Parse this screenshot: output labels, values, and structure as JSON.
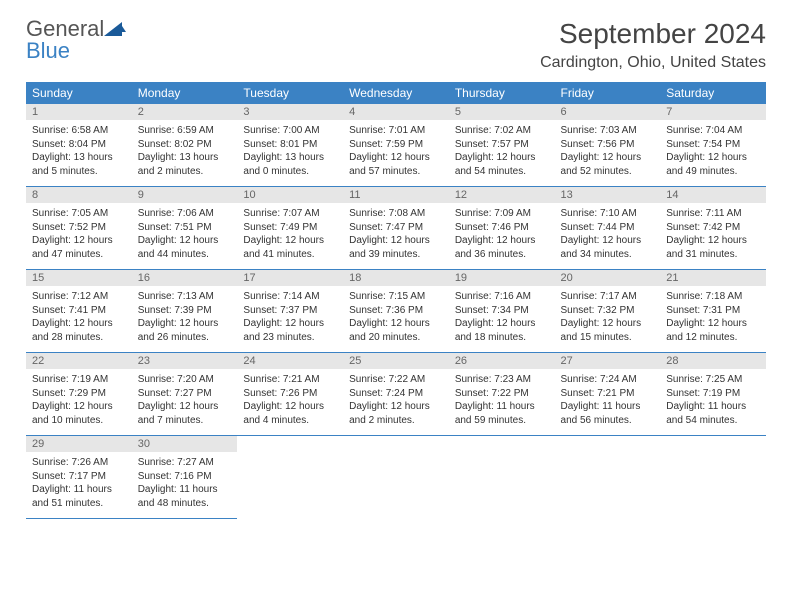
{
  "brand": {
    "general": "General",
    "blue": "Blue",
    "logo_color": "#1a5a99"
  },
  "header": {
    "month_title": "September 2024",
    "location": "Cardington, Ohio, United States"
  },
  "styling": {
    "header_bg": "#3b82c4",
    "header_text": "#ffffff",
    "daynum_bg": "#e6e6e6",
    "row_border": "#3b82c4",
    "body_text": "#333333"
  },
  "weekdays": [
    "Sunday",
    "Monday",
    "Tuesday",
    "Wednesday",
    "Thursday",
    "Friday",
    "Saturday"
  ],
  "days": [
    {
      "n": "1",
      "sunrise": "Sunrise: 6:58 AM",
      "sunset": "Sunset: 8:04 PM",
      "daylight": "Daylight: 13 hours and 5 minutes."
    },
    {
      "n": "2",
      "sunrise": "Sunrise: 6:59 AM",
      "sunset": "Sunset: 8:02 PM",
      "daylight": "Daylight: 13 hours and 2 minutes."
    },
    {
      "n": "3",
      "sunrise": "Sunrise: 7:00 AM",
      "sunset": "Sunset: 8:01 PM",
      "daylight": "Daylight: 13 hours and 0 minutes."
    },
    {
      "n": "4",
      "sunrise": "Sunrise: 7:01 AM",
      "sunset": "Sunset: 7:59 PM",
      "daylight": "Daylight: 12 hours and 57 minutes."
    },
    {
      "n": "5",
      "sunrise": "Sunrise: 7:02 AM",
      "sunset": "Sunset: 7:57 PM",
      "daylight": "Daylight: 12 hours and 54 minutes."
    },
    {
      "n": "6",
      "sunrise": "Sunrise: 7:03 AM",
      "sunset": "Sunset: 7:56 PM",
      "daylight": "Daylight: 12 hours and 52 minutes."
    },
    {
      "n": "7",
      "sunrise": "Sunrise: 7:04 AM",
      "sunset": "Sunset: 7:54 PM",
      "daylight": "Daylight: 12 hours and 49 minutes."
    },
    {
      "n": "8",
      "sunrise": "Sunrise: 7:05 AM",
      "sunset": "Sunset: 7:52 PM",
      "daylight": "Daylight: 12 hours and 47 minutes."
    },
    {
      "n": "9",
      "sunrise": "Sunrise: 7:06 AM",
      "sunset": "Sunset: 7:51 PM",
      "daylight": "Daylight: 12 hours and 44 minutes."
    },
    {
      "n": "10",
      "sunrise": "Sunrise: 7:07 AM",
      "sunset": "Sunset: 7:49 PM",
      "daylight": "Daylight: 12 hours and 41 minutes."
    },
    {
      "n": "11",
      "sunrise": "Sunrise: 7:08 AM",
      "sunset": "Sunset: 7:47 PM",
      "daylight": "Daylight: 12 hours and 39 minutes."
    },
    {
      "n": "12",
      "sunrise": "Sunrise: 7:09 AM",
      "sunset": "Sunset: 7:46 PM",
      "daylight": "Daylight: 12 hours and 36 minutes."
    },
    {
      "n": "13",
      "sunrise": "Sunrise: 7:10 AM",
      "sunset": "Sunset: 7:44 PM",
      "daylight": "Daylight: 12 hours and 34 minutes."
    },
    {
      "n": "14",
      "sunrise": "Sunrise: 7:11 AM",
      "sunset": "Sunset: 7:42 PM",
      "daylight": "Daylight: 12 hours and 31 minutes."
    },
    {
      "n": "15",
      "sunrise": "Sunrise: 7:12 AM",
      "sunset": "Sunset: 7:41 PM",
      "daylight": "Daylight: 12 hours and 28 minutes."
    },
    {
      "n": "16",
      "sunrise": "Sunrise: 7:13 AM",
      "sunset": "Sunset: 7:39 PM",
      "daylight": "Daylight: 12 hours and 26 minutes."
    },
    {
      "n": "17",
      "sunrise": "Sunrise: 7:14 AM",
      "sunset": "Sunset: 7:37 PM",
      "daylight": "Daylight: 12 hours and 23 minutes."
    },
    {
      "n": "18",
      "sunrise": "Sunrise: 7:15 AM",
      "sunset": "Sunset: 7:36 PM",
      "daylight": "Daylight: 12 hours and 20 minutes."
    },
    {
      "n": "19",
      "sunrise": "Sunrise: 7:16 AM",
      "sunset": "Sunset: 7:34 PM",
      "daylight": "Daylight: 12 hours and 18 minutes."
    },
    {
      "n": "20",
      "sunrise": "Sunrise: 7:17 AM",
      "sunset": "Sunset: 7:32 PM",
      "daylight": "Daylight: 12 hours and 15 minutes."
    },
    {
      "n": "21",
      "sunrise": "Sunrise: 7:18 AM",
      "sunset": "Sunset: 7:31 PM",
      "daylight": "Daylight: 12 hours and 12 minutes."
    },
    {
      "n": "22",
      "sunrise": "Sunrise: 7:19 AM",
      "sunset": "Sunset: 7:29 PM",
      "daylight": "Daylight: 12 hours and 10 minutes."
    },
    {
      "n": "23",
      "sunrise": "Sunrise: 7:20 AM",
      "sunset": "Sunset: 7:27 PM",
      "daylight": "Daylight: 12 hours and 7 minutes."
    },
    {
      "n": "24",
      "sunrise": "Sunrise: 7:21 AM",
      "sunset": "Sunset: 7:26 PM",
      "daylight": "Daylight: 12 hours and 4 minutes."
    },
    {
      "n": "25",
      "sunrise": "Sunrise: 7:22 AM",
      "sunset": "Sunset: 7:24 PM",
      "daylight": "Daylight: 12 hours and 2 minutes."
    },
    {
      "n": "26",
      "sunrise": "Sunrise: 7:23 AM",
      "sunset": "Sunset: 7:22 PM",
      "daylight": "Daylight: 11 hours and 59 minutes."
    },
    {
      "n": "27",
      "sunrise": "Sunrise: 7:24 AM",
      "sunset": "Sunset: 7:21 PM",
      "daylight": "Daylight: 11 hours and 56 minutes."
    },
    {
      "n": "28",
      "sunrise": "Sunrise: 7:25 AM",
      "sunset": "Sunset: 7:19 PM",
      "daylight": "Daylight: 11 hours and 54 minutes."
    },
    {
      "n": "29",
      "sunrise": "Sunrise: 7:26 AM",
      "sunset": "Sunset: 7:17 PM",
      "daylight": "Daylight: 11 hours and 51 minutes."
    },
    {
      "n": "30",
      "sunrise": "Sunrise: 7:27 AM",
      "sunset": "Sunset: 7:16 PM",
      "daylight": "Daylight: 11 hours and 48 minutes."
    }
  ]
}
